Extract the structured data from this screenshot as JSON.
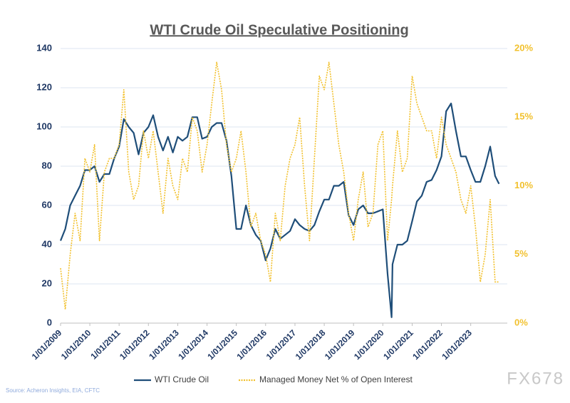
{
  "chart_data": {
    "type": "line",
    "title": "WTI Crude Oil Speculative Positioning",
    "source": "Source: Acheron Insights, EIA, CFTC",
    "watermark": "FX678",
    "x": [
      "2009-01-01",
      "2009-03-01",
      "2009-05-01",
      "2009-07-01",
      "2009-09-01",
      "2009-11-01",
      "2010-01-01",
      "2010-03-01",
      "2010-05-01",
      "2010-07-01",
      "2010-09-01",
      "2010-11-01",
      "2011-01-01",
      "2011-03-01",
      "2011-05-01",
      "2011-07-01",
      "2011-09-01",
      "2011-11-01",
      "2012-01-01",
      "2012-03-01",
      "2012-05-01",
      "2012-07-01",
      "2012-09-01",
      "2012-11-01",
      "2013-01-01",
      "2013-03-01",
      "2013-05-01",
      "2013-07-01",
      "2013-09-01",
      "2013-11-01",
      "2014-01-01",
      "2014-03-01",
      "2014-05-01",
      "2014-07-01",
      "2014-09-01",
      "2014-11-01",
      "2015-01-01",
      "2015-03-01",
      "2015-05-01",
      "2015-07-01",
      "2015-09-01",
      "2015-11-01",
      "2016-01-01",
      "2016-03-01",
      "2016-05-01",
      "2016-07-01",
      "2016-09-01",
      "2016-11-01",
      "2017-01-01",
      "2017-03-01",
      "2017-05-01",
      "2017-07-01",
      "2017-09-01",
      "2017-11-01",
      "2018-01-01",
      "2018-03-01",
      "2018-05-01",
      "2018-07-01",
      "2018-09-01",
      "2018-11-01",
      "2019-01-01",
      "2019-03-01",
      "2019-05-01",
      "2019-07-01",
      "2019-09-01",
      "2019-11-01",
      "2020-01-01",
      "2020-03-01",
      "2020-04-20",
      "2020-05-01",
      "2020-07-01",
      "2020-09-01",
      "2020-11-01",
      "2021-01-01",
      "2021-03-01",
      "2021-05-01",
      "2021-07-01",
      "2021-09-01",
      "2021-11-01",
      "2022-01-01",
      "2022-03-01",
      "2022-05-01",
      "2022-07-01",
      "2022-09-01",
      "2022-11-01",
      "2023-01-01",
      "2023-03-01",
      "2023-05-01",
      "2023-07-01",
      "2023-09-01",
      "2023-11-01",
      "2023-12-20"
    ],
    "xlim": [
      "2009-01-01",
      "2024-04-01"
    ],
    "xticks": [
      {
        "value": "2009-01-01",
        "label": "1/01/2009"
      },
      {
        "value": "2010-01-01",
        "label": "1/01/2010"
      },
      {
        "value": "2011-01-01",
        "label": "1/01/2011"
      },
      {
        "value": "2012-01-01",
        "label": "1/01/2012"
      },
      {
        "value": "2013-01-01",
        "label": "1/01/2013"
      },
      {
        "value": "2014-01-01",
        "label": "1/01/2014"
      },
      {
        "value": "2015-01-01",
        "label": "1/01/2015"
      },
      {
        "value": "2016-01-01",
        "label": "1/01/2016"
      },
      {
        "value": "2017-01-01",
        "label": "1/01/2017"
      },
      {
        "value": "2018-01-01",
        "label": "1/01/2018"
      },
      {
        "value": "2019-01-01",
        "label": "1/01/2019"
      },
      {
        "value": "2020-01-01",
        "label": "1/01/2020"
      },
      {
        "value": "2021-01-01",
        "label": "1/01/2021"
      },
      {
        "value": "2022-01-01",
        "label": "1/01/2022"
      },
      {
        "value": "2023-01-01",
        "label": "1/01/2023"
      }
    ],
    "ylim": [
      0,
      140
    ],
    "yticks": [
      0,
      20,
      40,
      60,
      80,
      100,
      120,
      140
    ],
    "y2lim": [
      0,
      20
    ],
    "y2ticks": [
      {
        "value": 0,
        "label": "0%"
      },
      {
        "value": 5,
        "label": "5%"
      },
      {
        "value": 10,
        "label": "10%"
      },
      {
        "value": 15,
        "label": "15%"
      },
      {
        "value": 20,
        "label": "20%"
      }
    ],
    "grid": true,
    "series": [
      {
        "name": "WTI Crude Oil",
        "color": "#1f4e79",
        "style": "solid",
        "values": [
          42,
          48,
          60,
          65,
          70,
          78,
          78,
          80,
          72,
          76,
          76,
          84,
          90,
          104,
          100,
          97,
          86,
          97,
          100,
          106,
          95,
          88,
          95,
          87,
          95,
          93,
          95,
          105,
          105,
          94,
          95,
          100,
          102,
          102,
          93,
          75,
          48,
          48,
          60,
          50,
          45,
          42,
          32,
          38,
          48,
          43,
          45,
          47,
          53,
          50,
          48,
          47,
          50,
          57,
          63,
          63,
          70,
          70,
          72,
          55,
          50,
          58,
          60,
          56,
          56,
          57,
          58,
          25,
          3,
          30,
          40,
          40,
          42,
          52,
          62,
          65,
          72,
          73,
          78,
          85,
          108,
          112,
          98,
          85,
          85,
          78,
          72,
          72,
          80,
          90,
          75,
          71
        ]
      },
      {
        "name": "Managed Money Net % of Open Interest",
        "color": "#f2c12e",
        "style": "dotted",
        "axis": "y2",
        "values": [
          4,
          1,
          5,
          8,
          6,
          12,
          11,
          13,
          6,
          11,
          12,
          12,
          13,
          17,
          11,
          9,
          10,
          14,
          12,
          14,
          11,
          8,
          12,
          10,
          9,
          12,
          11,
          15,
          14,
          11,
          13,
          16,
          19,
          17,
          13,
          11,
          12,
          14,
          11,
          7,
          8,
          6,
          5,
          3,
          8,
          6,
          10,
          12,
          13,
          15,
          10,
          6,
          12,
          18,
          17,
          19,
          16,
          13,
          11,
          8,
          6,
          9,
          11,
          7,
          8,
          13,
          14,
          6,
          9,
          10,
          14,
          11,
          12,
          18,
          16,
          15,
          14,
          14,
          12,
          15,
          13,
          12,
          11,
          9,
          8,
          10,
          7,
          3,
          5,
          9,
          3,
          3
        ]
      }
    ]
  }
}
